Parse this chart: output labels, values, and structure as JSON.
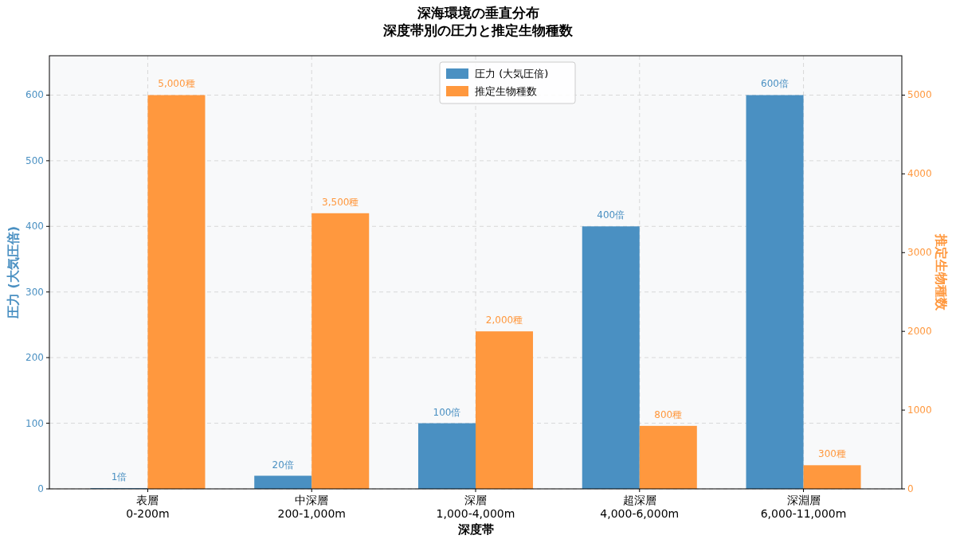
{
  "chart_data": {
    "type": "bar",
    "title": "深海環境の垂直分布",
    "subtitle": "深度帯別の圧力と推定生物種数",
    "xlabel": "深度帯",
    "ylabel": "圧力 (大気圧倍)",
    "y2label": "推定生物種数",
    "categories": [
      "表層\n0-200m",
      "中深層\n200-1,000m",
      "深層\n1,000-4,000m",
      "超深層\n4,000-6,000m",
      "深淵層\n6,000-11,000m"
    ],
    "ylim": [
      0,
      660
    ],
    "yticks": [
      0,
      100,
      200,
      300,
      400,
      500,
      600
    ],
    "y2lim": [
      0,
      5500
    ],
    "y2ticks": [
      0,
      1000,
      2000,
      3000,
      4000,
      5000
    ],
    "grid": true,
    "legend": "top",
    "series": [
      {
        "name": "圧力 (大気圧倍)",
        "color": "#4a90c2",
        "values": [
          1,
          20,
          100,
          400,
          600
        ],
        "value_labels": [
          "1倍",
          "20倍",
          "100倍",
          "400倍",
          "600倍"
        ]
      },
      {
        "name": "推定生物種数",
        "color": "#ff983e",
        "axis": "y2",
        "values": [
          5000,
          3500,
          2000,
          800,
          300
        ],
        "value_labels": [
          "5,000種",
          "3,500種",
          "2,000種",
          "800種",
          "300種"
        ]
      }
    ]
  }
}
